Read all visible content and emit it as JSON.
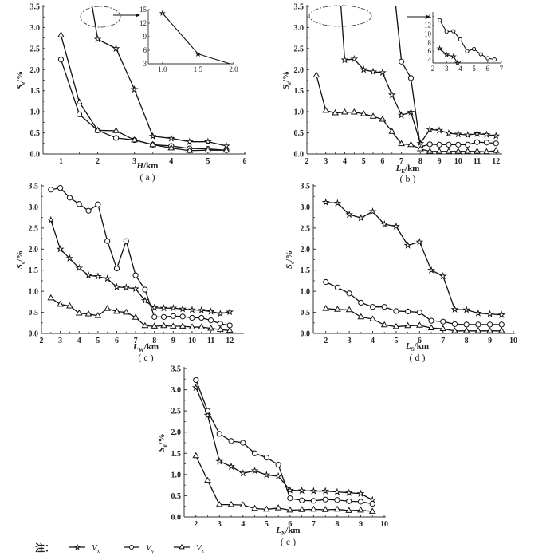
{
  "chart_data": [
    {
      "id": "a",
      "type": "line",
      "caption": "( a )",
      "xlabel_main": "H",
      "xlabel_sub": "",
      "xlabel_unit": "/km",
      "ylabel_main": "S",
      "ylabel_sub": "e",
      "ylabel_unit": "/%",
      "xlim": [
        0.6,
        6
      ],
      "ylim": [
        0,
        3.5
      ],
      "xticks": [
        1,
        2,
        3,
        4,
        5,
        6
      ],
      "yticks": [
        "0.0",
        "0.5",
        "1.0",
        "1.5",
        "2.0",
        "2.5",
        "3.0",
        "3.5"
      ],
      "series": [
        {
          "name": "Vx",
          "marker": "star",
          "x": [
            2,
            2.5,
            3,
            3.5,
            4,
            4.5,
            5,
            5.5
          ],
          "y": [
            2.72,
            2.5,
            1.53,
            0.42,
            0.37,
            0.29,
            0.29,
            0.19
          ],
          "clip_start": [
            1.85,
            3.5
          ]
        },
        {
          "name": "Vy",
          "marker": "circle",
          "x": [
            1,
            1.5,
            2,
            2.5,
            3,
            3.5,
            4,
            4.5,
            5,
            5.5
          ],
          "y": [
            2.24,
            0.94,
            0.56,
            0.38,
            0.33,
            0.22,
            0.19,
            0.13,
            0.12,
            0.09
          ]
        },
        {
          "name": "Vz",
          "marker": "triangle",
          "x": [
            1,
            1.5,
            2,
            2.5,
            3,
            3.5,
            4,
            4.5,
            5,
            5.5
          ],
          "y": [
            2.82,
            1.23,
            0.56,
            0.55,
            0.33,
            0.22,
            0.14,
            0.08,
            0.09,
            0.09
          ]
        }
      ],
      "inset": {
        "xlim": [
          0.8,
          2.0
        ],
        "ylim": [
          3,
          15
        ],
        "xticks": [
          "1.0",
          "1.5",
          "2.0"
        ],
        "yticks": [
          "3",
          "6",
          "9",
          "12",
          "15"
        ],
        "series": [
          {
            "name": "Vx",
            "marker": "star",
            "x": [
              1.0,
              1.5,
              1.95
            ],
            "y": [
              14.2,
              5.2,
              2.8
            ]
          }
        ]
      }
    },
    {
      "id": "b",
      "type": "line",
      "caption": "( b )",
      "xlabel_main": "L",
      "xlabel_sub": "E",
      "xlabel_unit": "/km",
      "ylabel_main": "S",
      "ylabel_sub": "e",
      "ylabel_unit": "/%",
      "xlim": [
        2,
        12.2
      ],
      "ylim": [
        0,
        3.5
      ],
      "xticks": [
        2,
        3,
        4,
        5,
        6,
        7,
        8,
        9,
        10,
        11,
        12
      ],
      "yticks": [
        "0.0",
        "0.5",
        "1.0",
        "1.5",
        "2.0",
        "2.5",
        "3.0",
        "3.5"
      ],
      "series": [
        {
          "name": "Vx",
          "marker": "star",
          "x": [
            4,
            4.5,
            5,
            5.5,
            6,
            6.5,
            7,
            7.5,
            8,
            8.5,
            9,
            9.5,
            10,
            10.5,
            11,
            11.5,
            12
          ],
          "y": [
            2.23,
            2.25,
            2.0,
            1.95,
            1.93,
            1.4,
            0.92,
            0.99,
            0.25,
            0.58,
            0.56,
            0.49,
            0.47,
            0.45,
            0.48,
            0.46,
            0.43
          ],
          "clip_start": [
            3.8,
            3.5
          ]
        },
        {
          "name": "Vy",
          "marker": "circle",
          "x": [
            7,
            7.5,
            8,
            8.5,
            9,
            9.5,
            10,
            10.5,
            11,
            11.5,
            12
          ],
          "y": [
            2.19,
            1.8,
            0.17,
            0.23,
            0.22,
            0.22,
            0.22,
            0.22,
            0.28,
            0.27,
            0.25
          ],
          "clip_start": [
            6.7,
            3.5
          ]
        },
        {
          "name": "Vz",
          "marker": "triangle",
          "x": [
            2.5,
            3,
            3.5,
            4,
            4.5,
            5,
            5.5,
            6,
            6.5,
            7,
            7.5,
            8,
            8.5,
            9,
            9.5,
            10,
            10.5,
            11,
            11.5,
            12
          ],
          "y": [
            1.87,
            1.03,
            0.97,
            0.99,
            0.99,
            0.95,
            0.89,
            0.82,
            0.53,
            0.24,
            0.22,
            0.12,
            0.06,
            0.06,
            0.06,
            0.06,
            0.06,
            0.06,
            0.05,
            0.08
          ]
        }
      ],
      "inset": {
        "xlim": [
          2,
          7
        ],
        "ylim": [
          3.3,
          15
        ],
        "xticks": [
          "2",
          "3",
          "4",
          "5",
          "6",
          "7"
        ],
        "yticks": [
          "4",
          "6",
          "8",
          "10",
          "12",
          "14"
        ],
        "series": [
          {
            "name": "Vy",
            "marker": "circle",
            "x": [
              2.5,
              3,
              3.5,
              4,
              4.5,
              5,
              5.5,
              6,
              6.5
            ],
            "y": [
              13.1,
              10.5,
              10.6,
              8.7,
              6.0,
              6.5,
              5.3,
              4.4,
              4.1
            ]
          },
          {
            "name": "Vx",
            "marker": "star",
            "x": [
              2.5,
              3,
              3.5,
              3.8
            ],
            "y": [
              6.6,
              5.2,
              4.8,
              3.3
            ]
          }
        ]
      }
    },
    {
      "id": "c",
      "type": "line",
      "caption": "( c )",
      "xlabel_main": "L",
      "xlabel_sub": "W",
      "xlabel_unit": "/km",
      "ylabel_main": "S",
      "ylabel_sub": "e",
      "ylabel_unit": "/%",
      "xlim": [
        2,
        12.5
      ],
      "ylim": [
        0,
        3.5
      ],
      "xticks": [
        2,
        3,
        4,
        5,
        6,
        7,
        8,
        9,
        10,
        11,
        12
      ],
      "yticks": [
        "0.0",
        "0.5",
        "1.0",
        "1.5",
        "2.0",
        "2.5",
        "3.0",
        "3.5"
      ],
      "series": [
        {
          "name": "Vx",
          "marker": "star",
          "x": [
            2.5,
            3,
            3.5,
            4,
            4.5,
            5,
            5.5,
            6,
            6.5,
            7,
            7.5,
            8,
            8.5,
            9,
            9.5,
            10,
            10.5,
            11,
            11.5,
            12
          ],
          "y": [
            2.69,
            2.0,
            1.78,
            1.55,
            1.38,
            1.35,
            1.3,
            1.1,
            1.09,
            1.06,
            0.78,
            0.61,
            0.6,
            0.6,
            0.58,
            0.56,
            0.55,
            0.52,
            0.47,
            0.51
          ]
        },
        {
          "name": "Vy",
          "marker": "circle",
          "x": [
            2.5,
            3,
            3.5,
            4,
            4.5,
            5,
            5.5,
            6,
            6.5,
            7,
            7.5,
            8,
            8.5,
            9,
            9.5,
            10,
            10.5,
            11,
            11.5,
            12
          ],
          "y": [
            3.41,
            3.45,
            3.22,
            3.07,
            2.91,
            3.06,
            2.19,
            1.54,
            2.19,
            1.38,
            1.04,
            0.39,
            0.39,
            0.41,
            0.4,
            0.37,
            0.37,
            0.31,
            0.23,
            0.19
          ]
        },
        {
          "name": "Vz",
          "marker": "triangle",
          "x": [
            2.5,
            3,
            3.5,
            4,
            4.5,
            5,
            5.5,
            6,
            6.5,
            7,
            7.5,
            8,
            8.5,
            9,
            9.5,
            10,
            10.5,
            11,
            11.5,
            12
          ],
          "y": [
            0.84,
            0.69,
            0.65,
            0.48,
            0.46,
            0.42,
            0.59,
            0.52,
            0.5,
            0.38,
            0.18,
            0.17,
            0.18,
            0.17,
            0.17,
            0.15,
            0.15,
            0.12,
            0.09,
            0.07
          ]
        }
      ]
    },
    {
      "id": "d",
      "type": "line",
      "caption": "( d )",
      "xlabel_main": "L",
      "xlabel_sub": "S",
      "xlabel_unit": "/km",
      "ylabel_main": "S",
      "ylabel_sub": "e",
      "ylabel_unit": "/%",
      "xlim": [
        1.5,
        10
      ],
      "ylim": [
        0,
        3.5
      ],
      "xticks": [
        2,
        3,
        4,
        5,
        6,
        7,
        8,
        9,
        10
      ],
      "yticks": [
        "0.0",
        "0.5",
        "1.0",
        "1.5",
        "2.0",
        "2.5",
        "3.0",
        "3.5"
      ],
      "series": [
        {
          "name": "Vx",
          "marker": "star",
          "x": [
            2,
            2.5,
            3,
            3.5,
            4,
            4.5,
            5,
            5.5,
            6,
            6.5,
            7,
            7.5,
            8,
            8.5,
            9,
            9.5
          ],
          "y": [
            3.11,
            3.09,
            2.82,
            2.74,
            2.89,
            2.59,
            2.54,
            2.09,
            2.17,
            1.5,
            1.36,
            0.57,
            0.56,
            0.48,
            0.46,
            0.44
          ]
        },
        {
          "name": "Vy",
          "marker": "circle",
          "x": [
            2,
            2.5,
            3,
            3.5,
            4,
            4.5,
            5,
            5.5,
            6,
            6.5,
            7,
            7.5,
            8,
            8.5,
            9,
            9.5
          ],
          "y": [
            1.22,
            1.09,
            0.95,
            0.73,
            0.63,
            0.63,
            0.53,
            0.52,
            0.5,
            0.3,
            0.28,
            0.22,
            0.21,
            0.21,
            0.21,
            0.21
          ]
        },
        {
          "name": "Vz",
          "marker": "triangle",
          "x": [
            2,
            2.5,
            3,
            3.5,
            4,
            4.5,
            5,
            5.5,
            6,
            6.5,
            7,
            7.5,
            8,
            8.5,
            9,
            9.5
          ],
          "y": [
            0.59,
            0.57,
            0.56,
            0.39,
            0.34,
            0.2,
            0.16,
            0.18,
            0.19,
            0.13,
            0.11,
            0.06,
            0.06,
            0.06,
            0.06,
            0.06
          ]
        }
      ]
    },
    {
      "id": "e",
      "type": "line",
      "caption": "( e )",
      "xlabel_main": "L",
      "xlabel_sub": "N",
      "xlabel_unit": "/km",
      "ylabel_main": "S",
      "ylabel_sub": "e",
      "ylabel_unit": "/%",
      "xlim": [
        1.5,
        10
      ],
      "ylim": [
        0,
        3.5
      ],
      "xticks": [
        2,
        3,
        4,
        5,
        6,
        7,
        8,
        9,
        10
      ],
      "yticks": [
        "0.0",
        "0.5",
        "1.0",
        "1.5",
        "2.0",
        "2.5",
        "3.0",
        "3.5"
      ],
      "series": [
        {
          "name": "Vx",
          "marker": "star",
          "x": [
            2,
            2.5,
            3,
            3.5,
            4,
            4.5,
            5,
            5.5,
            6,
            6.5,
            7,
            7.5,
            8,
            8.5,
            9,
            9.5
          ],
          "y": [
            3.05,
            2.4,
            1.31,
            1.19,
            1.03,
            1.09,
            0.99,
            0.96,
            0.63,
            0.62,
            0.61,
            0.61,
            0.59,
            0.57,
            0.55,
            0.4
          ]
        },
        {
          "name": "Vy",
          "marker": "circle",
          "x": [
            2,
            2.5,
            3,
            3.5,
            4,
            4.5,
            5,
            5.5,
            6,
            6.5,
            7,
            7.5,
            8,
            8.5,
            9,
            9.5
          ],
          "y": [
            3.23,
            2.5,
            1.96,
            1.79,
            1.75,
            1.5,
            1.4,
            1.23,
            0.44,
            0.39,
            0.38,
            0.41,
            0.4,
            0.37,
            0.36,
            0.31
          ]
        },
        {
          "name": "Vz",
          "marker": "triangle",
          "x": [
            2,
            2.5,
            3,
            3.5,
            4,
            4.5,
            5,
            5.5,
            6,
            6.5,
            7,
            7.5,
            8,
            8.5,
            9,
            9.5
          ],
          "y": [
            1.44,
            0.86,
            0.29,
            0.29,
            0.28,
            0.2,
            0.18,
            0.21,
            0.16,
            0.17,
            0.18,
            0.17,
            0.18,
            0.15,
            0.16,
            0.13
          ]
        }
      ]
    }
  ],
  "legend": {
    "note_label": "注：",
    "items": [
      {
        "main": "V",
        "sub": "x",
        "marker": "star"
      },
      {
        "main": "V",
        "sub": "y",
        "marker": "circle"
      },
      {
        "main": "V",
        "sub": "z",
        "marker": "triangle"
      }
    ]
  },
  "colors": {
    "line": "#111111",
    "axis": "#333333",
    "ellipse": "#555555"
  }
}
